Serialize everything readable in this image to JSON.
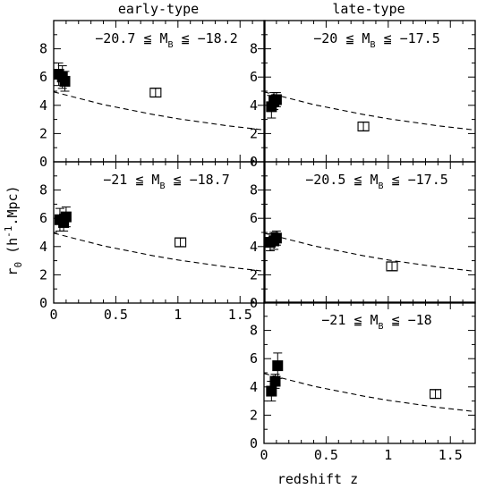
{
  "chart_data": {
    "type": "scatter",
    "columns": [
      "early-type",
      "late-type"
    ],
    "ylabel": "r0 (h-1.Mpc)",
    "ylabel_parts": {
      "sym": "r",
      "sub": "0",
      "open": " (h",
      "sup": "-1",
      "close": ".Mpc)"
    },
    "xlabel": "redshift z",
    "xlim": [
      0,
      1.7
    ],
    "ylim": [
      0,
      10
    ],
    "xticks": [
      "0",
      "0.5",
      "1",
      "1.5"
    ],
    "yticks": [
      "0",
      "2",
      "4",
      "6",
      "8"
    ],
    "model_curve": {
      "style": "dashed",
      "points": [
        [
          0,
          4.95
        ],
        [
          0.2,
          4.5
        ],
        [
          0.4,
          4.05
        ],
        [
          0.6,
          3.7
        ],
        [
          0.8,
          3.35
        ],
        [
          1.0,
          3.05
        ],
        [
          1.2,
          2.8
        ],
        [
          1.4,
          2.55
        ],
        [
          1.6,
          2.35
        ],
        [
          1.7,
          2.25
        ]
      ]
    },
    "panels": [
      {
        "id": "early-bright",
        "row": 0,
        "col": 0,
        "range": {
          "pre": "−20.7 ≦ M",
          "sub": "B",
          "post": " ≦ −18.2"
        },
        "filled": [
          [
            0.04,
            6.2,
            0.8
          ],
          [
            0.07,
            6.0,
            0.8
          ],
          [
            0.09,
            5.7,
            0.7
          ]
        ],
        "open": [
          [
            0.82,
            4.9,
            0.3
          ]
        ],
        "xticklabels": false
      },
      {
        "id": "late-bright",
        "row": 0,
        "col": 1,
        "range": {
          "pre": "−20 ≦ M",
          "sub": "B",
          "post": " ≦ −17.5"
        },
        "filled": [
          [
            0.06,
            3.9,
            0.8
          ],
          [
            0.08,
            4.3,
            0.6
          ],
          [
            0.1,
            4.4,
            0.5
          ]
        ],
        "open": [
          [
            0.8,
            2.5,
            0.3
          ]
        ],
        "xticklabels": false
      },
      {
        "id": "early-faint",
        "row": 1,
        "col": 0,
        "range": {
          "pre": "−21 ≦ M",
          "sub": "B",
          "post": " ≦ −18.7"
        },
        "filled": [
          [
            0.05,
            5.9,
            0.8
          ],
          [
            0.08,
            5.7,
            0.6
          ],
          [
            0.1,
            6.1,
            0.7
          ]
        ],
        "open": [
          [
            1.02,
            4.3,
            0.3
          ]
        ],
        "xticklabels": true
      },
      {
        "id": "late-faint",
        "row": 1,
        "col": 1,
        "range": {
          "pre": "−20.5 ≦ M",
          "sub": "B",
          "post": " ≦ −17.5"
        },
        "filled": [
          [
            0.05,
            4.3,
            0.6
          ],
          [
            0.08,
            4.4,
            0.6
          ],
          [
            0.1,
            4.6,
            0.5
          ]
        ],
        "open": [
          [
            1.03,
            2.6,
            0.3
          ]
        ],
        "xticklabels": false
      },
      {
        "id": "late-bottom",
        "row": 2,
        "col": 1,
        "range": {
          "pre": "−21 ≦ M",
          "sub": "B",
          "post": " ≦ −18"
        },
        "filled": [
          [
            0.06,
            3.7,
            0.7
          ],
          [
            0.09,
            4.4,
            0.5
          ],
          [
            0.11,
            5.5,
            0.9
          ]
        ],
        "open": [
          [
            1.38,
            3.5,
            0.3
          ]
        ],
        "xticklabels": true
      }
    ]
  }
}
